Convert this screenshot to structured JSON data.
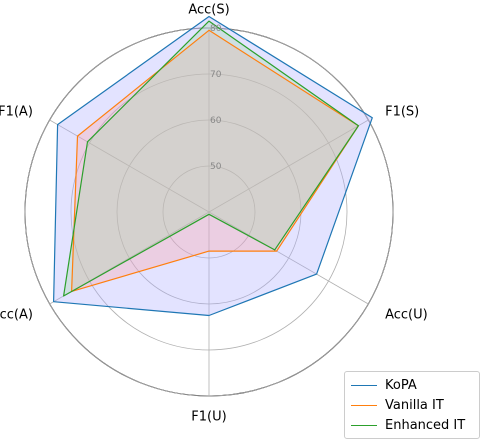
{
  "chart_data": {
    "type": "radar",
    "axes": [
      "Acc(S)",
      "F1(S)",
      "Acc(U)",
      "F1(U)",
      "Acc(A)",
      "F1(A)"
    ],
    "rlim": [
      40,
      80
    ],
    "rticks": [
      50,
      60,
      70,
      80
    ],
    "grid": true,
    "legend_position": "bottom-right",
    "series": [
      {
        "name": "KoPA",
        "color": "#1f77b4",
        "fill": "#b0b0ff",
        "fill_opacity": 0.35,
        "values": [
          82.5,
          81.0,
          67.0,
          62.5,
          79.0,
          78.0
        ]
      },
      {
        "name": "Vanilla IT",
        "color": "#ff7f0e",
        "fill": "#ff9f9f",
        "fill_opacity": 0.3,
        "values": [
          79.5,
          77.5,
          57.0,
          48.5,
          74.5,
          73.0
        ]
      },
      {
        "name": "Enhanced IT",
        "color": "#2ca02c",
        "fill": "#9fd89f",
        "fill_opacity": 0.3,
        "values": [
          81.5,
          77.5,
          56.5,
          40.5,
          76.5,
          70.5
        ]
      }
    ]
  }
}
